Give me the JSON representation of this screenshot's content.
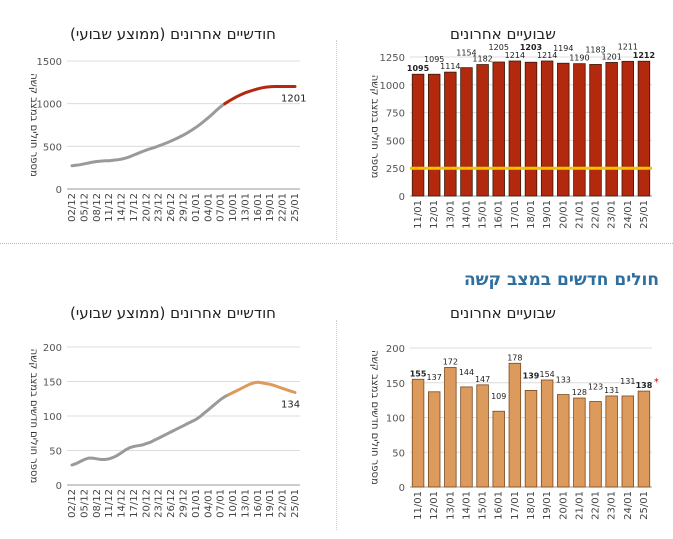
{
  "section_heading": "חולים חדשים במצב קשה",
  "chart_data": [
    {
      "id": "top-right",
      "type": "bar",
      "title": "שבועיים אחרונים",
      "ylabel": "מספר חולים במצב קשה",
      "xlabel": "",
      "ylim": [
        0,
        1250
      ],
      "yticks": [
        0,
        250,
        500,
        750,
        1000,
        1250
      ],
      "grid": true,
      "categories": [
        "11/01",
        "12/01",
        "13/01",
        "14/01",
        "15/01",
        "16/01",
        "17/01",
        "18/01",
        "19/01",
        "20/01",
        "21/01",
        "22/01",
        "23/01",
        "24/01",
        "25/01"
      ],
      "values": [
        1095,
        1095,
        1114,
        1154,
        1182,
        1205,
        1214,
        1203,
        1214,
        1194,
        1190,
        1183,
        1201,
        1211,
        1212
      ],
      "bold_labels": [
        0,
        7,
        14
      ],
      "bar_color": "#b3290d",
      "bar_outline": "#3a1a0a",
      "reference_line": {
        "value": 250,
        "color": "#f2c300"
      }
    },
    {
      "id": "top-left",
      "type": "line",
      "title": "חודשיים אחרונים (ממוצע שבועי)",
      "ylabel": "מספר חולים במצב קשה",
      "xlabel": "",
      "ylim": [
        0,
        1500
      ],
      "yticks": [
        0,
        500,
        1000,
        1500
      ],
      "grid": true,
      "xticks": [
        "02/12",
        "05/12",
        "08/12",
        "11/12",
        "14/12",
        "17/12",
        "20/12",
        "23/12",
        "26/12",
        "29/12",
        "01/01",
        "04/01",
        "07/01",
        "10/01",
        "13/01",
        "16/01",
        "19/01",
        "22/01",
        "25/01"
      ],
      "x_count": 55,
      "values": [
        272,
        278,
        285,
        295,
        305,
        315,
        322,
        327,
        330,
        332,
        336,
        342,
        350,
        362,
        378,
        398,
        418,
        438,
        456,
        472,
        488,
        505,
        523,
        543,
        563,
        585,
        608,
        633,
        660,
        690,
        722,
        757,
        795,
        835,
        878,
        922,
        966,
        1000,
        1030,
        1058,
        1085,
        1108,
        1128,
        1145,
        1160,
        1174,
        1186,
        1194,
        1199,
        1201,
        1201,
        1201,
        1201,
        1201,
        1201
      ],
      "split_index": 37,
      "end_label": "1201",
      "color_before": "#9a9a9a",
      "color_after": "#b3290d"
    },
    {
      "id": "bottom-right",
      "type": "bar",
      "title": "שבועיים אחרונים",
      "ylabel": "מספר חולים חדשים במצב קשה",
      "xlabel": "",
      "ylim": [
        0,
        200
      ],
      "yticks": [
        0,
        50,
        100,
        150,
        200
      ],
      "grid": true,
      "categories": [
        "11/01",
        "12/01",
        "13/01",
        "14/01",
        "15/01",
        "16/01",
        "17/01",
        "18/01",
        "19/01",
        "20/01",
        "21/01",
        "22/01",
        "23/01",
        "24/01",
        "25/01"
      ],
      "values": [
        155,
        137,
        172,
        144,
        147,
        109,
        178,
        139,
        154,
        133,
        128,
        123,
        131,
        131,
        138
      ],
      "bold_labels": [
        0,
        7,
        14
      ],
      "star_index": 14,
      "star": "*",
      "bar_color": "#dc9a5d",
      "bar_outline": "#7a4a20"
    },
    {
      "id": "bottom-left",
      "type": "line",
      "title": "חודשיים אחרונים (ממוצע שבועי)",
      "ylabel": "מספר חולים חדשים במצב קשה",
      "xlabel": "",
      "ylim": [
        0,
        200
      ],
      "yticks": [
        0,
        50,
        100,
        150,
        200
      ],
      "grid": true,
      "xticks": [
        "02/12",
        "05/12",
        "08/12",
        "11/12",
        "14/12",
        "17/12",
        "20/12",
        "23/12",
        "26/12",
        "29/12",
        "01/01",
        "04/01",
        "07/01",
        "10/01",
        "13/01",
        "16/01",
        "19/01",
        "22/01",
        "25/01"
      ],
      "x_count": 55,
      "values": [
        29,
        31,
        34,
        37,
        39,
        39,
        38,
        37,
        37,
        38,
        40,
        43,
        47,
        51,
        54,
        56,
        57,
        58,
        60,
        62,
        65,
        68,
        71,
        74,
        77,
        80,
        83,
        86,
        89,
        92,
        95,
        99,
        104,
        109,
        114,
        119,
        124,
        128,
        131,
        134,
        137,
        140,
        143,
        146,
        148,
        149,
        148,
        147,
        146,
        144,
        142,
        140,
        138,
        136,
        134
      ],
      "split_index": 38,
      "end_label": "134",
      "color_before": "#9a9a9a",
      "color_after": "#dc9a5d"
    }
  ]
}
